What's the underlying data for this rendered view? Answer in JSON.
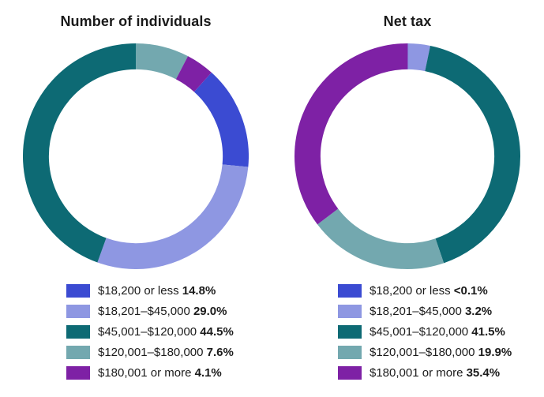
{
  "page": {
    "background_color": "#ffffff",
    "text_color": "#1a1a1a"
  },
  "palette": {
    "blue": "#3b4bd2",
    "periwinkle": "#8e97e2",
    "teal": "#0d6a74",
    "light_teal": "#73a8af",
    "purple": "#7e21a5"
  },
  "chart_data": [
    {
      "type": "pie",
      "subtype": "donut",
      "title": "Number of individuals",
      "categories": [
        "$18,200 or less",
        "$18,201–$45,000",
        "$45,001–$120,000",
        "$120,001–$180,000",
        "$180,001 or more"
      ],
      "values": [
        14.8,
        29.0,
        44.5,
        7.6,
        4.1
      ],
      "display_values": [
        "14.8%",
        "29.0%",
        "44.5%",
        "7.6%",
        "4.1%"
      ],
      "colors": [
        "#3b4bd2",
        "#8e97e2",
        "#0d6a74",
        "#73a8af",
        "#7e21a5"
      ],
      "rotation_deg_clockwise_from_top": 42.12,
      "donut_hole_ratio": 0.77,
      "legend_position": "bottom"
    },
    {
      "type": "pie",
      "subtype": "donut",
      "title": "Net tax",
      "categories": [
        "$18,200 or less",
        "$18,201–$45,000",
        "$45,001–$120,000",
        "$120,001–$180,000",
        "$180,001 or more"
      ],
      "values": [
        0.05,
        3.2,
        41.5,
        19.9,
        35.4
      ],
      "display_values": [
        "<0.1%",
        "3.2%",
        "41.5%",
        "19.9%",
        "35.4%"
      ],
      "colors": [
        "#3b4bd2",
        "#8e97e2",
        "#0d6a74",
        "#73a8af",
        "#7e21a5"
      ],
      "rotation_deg_clockwise_from_top": 0,
      "donut_hole_ratio": 0.77,
      "legend_position": "bottom"
    }
  ]
}
